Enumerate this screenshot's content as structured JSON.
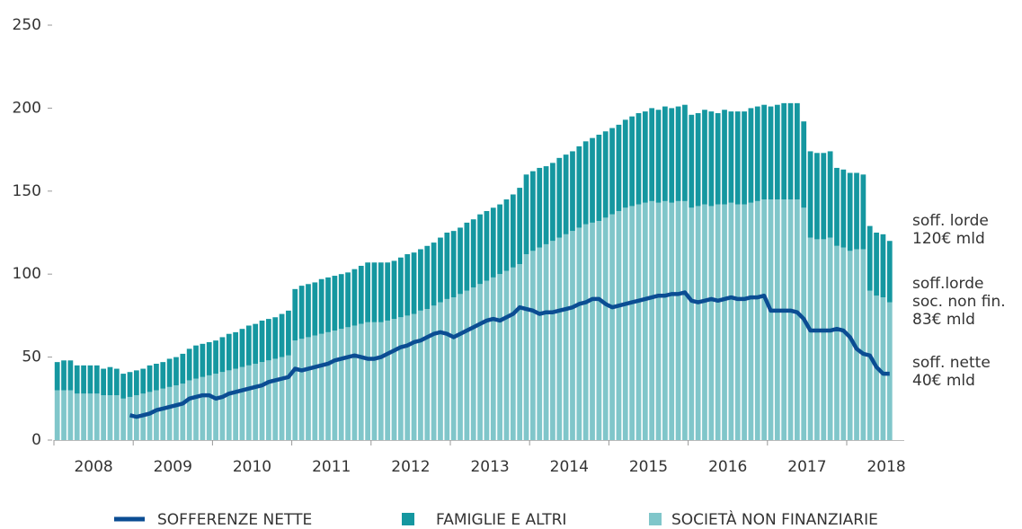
{
  "chart_data": {
    "type": "bar",
    "stacked": true,
    "categories": [
      null,
      null,
      null,
      null,
      null,
      null,
      "2008",
      null,
      null,
      null,
      null,
      null,
      null,
      null,
      null,
      null,
      null,
      null,
      "2009",
      null,
      null,
      null,
      null,
      null,
      null,
      null,
      null,
      null,
      null,
      null,
      "2010",
      null,
      null,
      null,
      null,
      null,
      null,
      null,
      null,
      null,
      null,
      null,
      "2011",
      null,
      null,
      null,
      null,
      null,
      null,
      null,
      null,
      null,
      null,
      null,
      "2012",
      null,
      null,
      null,
      null,
      null,
      null,
      null,
      null,
      null,
      null,
      null,
      "2013",
      null,
      null,
      null,
      null,
      null,
      null,
      null,
      null,
      null,
      null,
      null,
      "2014",
      null,
      null,
      null,
      null,
      null,
      null,
      null,
      null,
      null,
      null,
      null,
      "2015",
      null,
      null,
      null,
      null,
      null,
      null,
      null,
      null,
      null,
      null,
      null,
      "2016",
      null,
      null,
      null,
      null,
      null,
      null,
      null,
      null,
      null,
      null,
      null,
      "2017",
      null,
      null,
      null,
      null,
      null,
      null,
      null,
      null,
      null,
      null,
      null,
      "2018"
    ],
    "series": [
      {
        "name": "SOCIETÀ NON FINANZIARIE",
        "color": "#80c6ca",
        "values": [
          30,
          30,
          30,
          28,
          28,
          28,
          28,
          27,
          27,
          27,
          25,
          26,
          27,
          28,
          29,
          30,
          31,
          32,
          33,
          34,
          36,
          37,
          38,
          39,
          40,
          41,
          42,
          43,
          44,
          45,
          46,
          47,
          48,
          49,
          50,
          51,
          60,
          61,
          62,
          63,
          64,
          65,
          66,
          67,
          68,
          69,
          70,
          71,
          71,
          71,
          72,
          73,
          74,
          75,
          76,
          78,
          79,
          81,
          83,
          85,
          86,
          88,
          90,
          92,
          94,
          96,
          98,
          100,
          102,
          104,
          106,
          112,
          114,
          116,
          118,
          120,
          122,
          124,
          126,
          128,
          130,
          131,
          132,
          134,
          136,
          138,
          140,
          141,
          142,
          143,
          144,
          143,
          144,
          143,
          144,
          144,
          140,
          141,
          142,
          141,
          142,
          142,
          143,
          142,
          142,
          143,
          144,
          145,
          145,
          145,
          145,
          145,
          145,
          140,
          122,
          121,
          121,
          122,
          117,
          116,
          114,
          115,
          115,
          90,
          87,
          86,
          83
        ]
      },
      {
        "name": "FAMIGLIE E ALTRI",
        "color": "#1597a0",
        "values": [
          17,
          18,
          18,
          17,
          17,
          17,
          17,
          16,
          17,
          16,
          15,
          15,
          15,
          15,
          16,
          16,
          16,
          17,
          17,
          18,
          19,
          20,
          20,
          20,
          20,
          21,
          22,
          22,
          23,
          24,
          24,
          25,
          25,
          25,
          26,
          27,
          31,
          32,
          32,
          32,
          33,
          33,
          33,
          33,
          33,
          34,
          35,
          36,
          36,
          36,
          35,
          35,
          36,
          37,
          37,
          37,
          38,
          38,
          39,
          40,
          40,
          40,
          41,
          41,
          42,
          42,
          42,
          42,
          43,
          44,
          46,
          48,
          48,
          48,
          47,
          47,
          48,
          48,
          48,
          49,
          50,
          51,
          52,
          52,
          52,
          52,
          53,
          54,
          55,
          55,
          56,
          56,
          57,
          57,
          57,
          58,
          56,
          56,
          57,
          57,
          55,
          57,
          55,
          56,
          56,
          57,
          57,
          57,
          56,
          57,
          58,
          58,
          58,
          52,
          52,
          52,
          52,
          52,
          47,
          47,
          47,
          46,
          45,
          39,
          38,
          38,
          37
        ]
      },
      {
        "name": "SOFFERENZE NETTE",
        "type": "line",
        "color": "#0b4d93",
        "values": [
          null,
          null,
          null,
          null,
          null,
          null,
          null,
          null,
          null,
          null,
          null,
          15,
          14,
          15,
          16,
          18,
          19,
          20,
          21,
          22,
          25,
          26,
          27,
          27,
          25,
          26,
          28,
          29,
          30,
          31,
          32,
          33,
          35,
          36,
          37,
          38,
          43,
          42,
          43,
          44,
          45,
          46,
          48,
          49,
          50,
          51,
          50,
          49,
          49,
          50,
          52,
          54,
          56,
          57,
          59,
          60,
          62,
          64,
          65,
          64,
          62,
          64,
          66,
          68,
          70,
          72,
          73,
          72,
          74,
          76,
          80,
          79,
          78,
          76,
          77,
          77,
          78,
          79,
          80,
          82,
          83,
          85,
          85,
          82,
          80,
          81,
          82,
          83,
          84,
          85,
          86,
          87,
          87,
          88,
          88,
          89,
          84,
          83,
          84,
          85,
          84,
          85,
          86,
          85,
          85,
          86,
          86,
          87,
          78,
          78,
          78,
          78,
          77,
          73,
          66,
          66,
          66,
          66,
          67,
          66,
          62,
          55,
          52,
          51,
          44,
          40,
          40
        ]
      }
    ],
    "ylim": [
      0,
      250
    ],
    "yticks": [
      0,
      50,
      100,
      150,
      200,
      250
    ],
    "annotations": [
      {
        "lines": [
          "soff. lorde",
          "120€ mld"
        ]
      },
      {
        "lines": [
          "soff.lorde",
          "soc. non fin.",
          "83€ mld"
        ]
      },
      {
        "lines": [
          "soff. nette",
          "40€ mld"
        ]
      }
    ]
  }
}
